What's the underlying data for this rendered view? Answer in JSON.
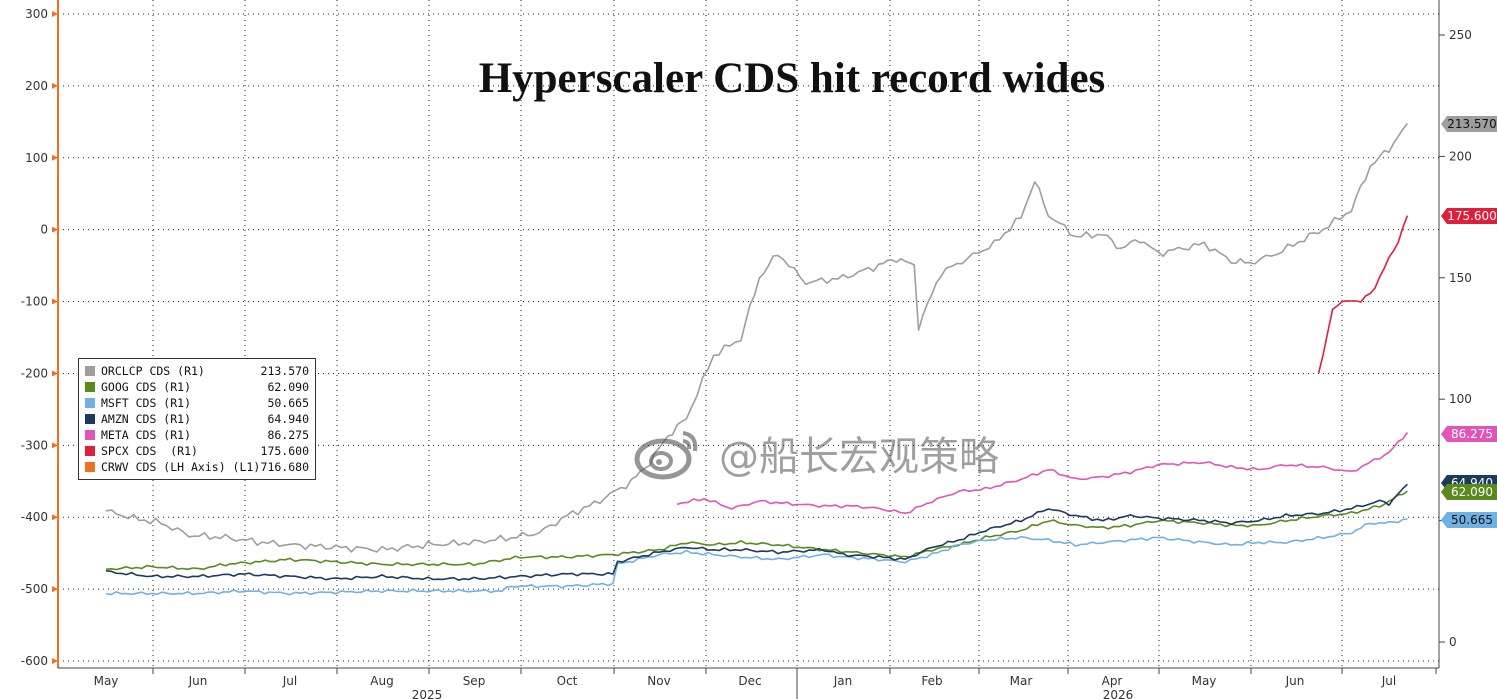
{
  "chart_data": {
    "type": "line",
    "title": "Hyperscaler CDS hit record wides",
    "left_axis": {
      "ticks": [
        300,
        200,
        100,
        0,
        -100,
        -200,
        -300,
        -400,
        -500,
        -600
      ],
      "range": [
        -600,
        300
      ]
    },
    "right_axis": {
      "ticks": [
        250,
        200,
        150,
        100,
        50,
        0
      ],
      "range": [
        0,
        250
      ]
    },
    "x_axis": {
      "months": [
        "May",
        "Jun",
        "Jul",
        "Aug",
        "Sep",
        "Oct",
        "Nov",
        "Dec",
        "Jan",
        "Feb",
        "Mar",
        "Apr",
        "May",
        "Jun",
        "Jul"
      ],
      "years": [
        "2025",
        "2026"
      ]
    },
    "series": [
      {
        "name": "ORCLCP CDS (R1)",
        "last": "213.570",
        "color": "#9e9e9e",
        "points": [
          [
            0,
            54
          ],
          [
            0.3,
            51
          ],
          [
            0.6,
            49
          ],
          [
            0.9,
            44
          ],
          [
            1.3,
            43
          ],
          [
            1.7,
            41
          ],
          [
            2.0,
            40
          ],
          [
            2.5,
            39
          ],
          [
            3.0,
            38
          ],
          [
            3.5,
            40
          ],
          [
            4.0,
            41
          ],
          [
            4.4,
            43
          ],
          [
            4.7,
            45
          ],
          [
            5.0,
            52
          ],
          [
            5.3,
            57
          ],
          [
            5.7,
            66
          ],
          [
            5.9,
            74
          ],
          [
            6.1,
            85
          ],
          [
            6.3,
            92
          ],
          [
            6.6,
            118
          ],
          [
            6.9,
            125
          ],
          [
            7.1,
            150
          ],
          [
            7.3,
            160
          ],
          [
            7.6,
            148
          ],
          [
            8.0,
            150
          ],
          [
            8.4,
            155
          ],
          [
            8.6,
            158
          ],
          [
            8.8,
            155
          ],
          [
            8.85,
            130
          ],
          [
            9.1,
            152
          ],
          [
            9.4,
            158
          ],
          [
            9.7,
            164
          ],
          [
            10.0,
            175
          ],
          [
            10.15,
            190
          ],
          [
            10.3,
            176
          ],
          [
            10.6,
            167
          ],
          [
            10.9,
            168
          ],
          [
            11.1,
            162
          ],
          [
            11.3,
            166
          ],
          [
            11.5,
            160
          ],
          [
            12.0,
            164
          ],
          [
            12.3,
            157
          ],
          [
            12.5,
            156
          ],
          [
            12.8,
            160
          ],
          [
            13.1,
            166
          ],
          [
            13.3,
            170
          ],
          [
            13.6,
            178
          ],
          [
            13.8,
            196
          ],
          [
            14.0,
            203
          ],
          [
            14.2,
            213.57
          ]
        ]
      },
      {
        "name": "GOOG CDS (R1)",
        "last": "62.090",
        "color": "#5a8a1e",
        "points": [
          [
            0,
            30
          ],
          [
            0.5,
            31
          ],
          [
            1.0,
            30
          ],
          [
            1.3,
            32
          ],
          [
            2.0,
            34
          ],
          [
            2.5,
            33
          ],
          [
            3.0,
            32
          ],
          [
            3.5,
            32
          ],
          [
            4.0,
            32
          ],
          [
            4.5,
            35
          ],
          [
            5.0,
            35
          ],
          [
            5.5,
            36
          ],
          [
            6.0,
            38
          ],
          [
            6.3,
            41
          ],
          [
            6.6,
            40
          ],
          [
            6.9,
            41
          ],
          [
            7.3,
            40
          ],
          [
            7.8,
            38
          ],
          [
            8.1,
            37
          ],
          [
            8.4,
            36
          ],
          [
            8.7,
            35
          ],
          [
            9.0,
            38
          ],
          [
            9.3,
            40
          ],
          [
            9.6,
            43
          ],
          [
            10.0,
            46
          ],
          [
            10.3,
            50
          ],
          [
            10.6,
            48
          ],
          [
            10.9,
            47
          ],
          [
            11.2,
            48
          ],
          [
            11.5,
            50
          ],
          [
            12.0,
            49
          ],
          [
            12.3,
            48
          ],
          [
            12.6,
            48
          ],
          [
            12.9,
            50
          ],
          [
            13.3,
            52
          ],
          [
            13.6,
            53
          ],
          [
            13.9,
            56
          ],
          [
            14.0,
            58
          ],
          [
            14.2,
            62.09
          ]
        ]
      },
      {
        "name": "MSFT CDS (R1)",
        "last": "50.665",
        "color": "#6eb2e4",
        "points": [
          [
            0,
            20
          ],
          [
            0.5,
            20
          ],
          [
            1.0,
            20
          ],
          [
            1.5,
            21
          ],
          [
            2.0,
            20
          ],
          [
            3.0,
            21
          ],
          [
            4.0,
            21
          ],
          [
            4.3,
            21
          ],
          [
            4.4,
            23
          ],
          [
            5.0,
            23
          ],
          [
            5.5,
            24
          ],
          [
            5.55,
            32
          ],
          [
            6.0,
            36
          ],
          [
            6.3,
            37
          ],
          [
            6.6,
            36
          ],
          [
            6.9,
            35
          ],
          [
            7.3,
            34
          ],
          [
            7.8,
            36
          ],
          [
            8.0,
            35
          ],
          [
            8.4,
            34
          ],
          [
            8.7,
            33
          ],
          [
            9.0,
            36
          ],
          [
            9.3,
            40
          ],
          [
            9.6,
            42
          ],
          [
            10.0,
            43
          ],
          [
            10.3,
            42
          ],
          [
            10.6,
            40
          ],
          [
            10.9,
            41
          ],
          [
            11.2,
            42
          ],
          [
            11.5,
            43
          ],
          [
            12.0,
            41
          ],
          [
            12.3,
            40
          ],
          [
            12.6,
            41
          ],
          [
            12.9,
            41
          ],
          [
            13.3,
            43
          ],
          [
            13.6,
            45
          ],
          [
            13.8,
            49
          ],
          [
            14.0,
            49
          ],
          [
            14.2,
            50.665
          ]
        ]
      },
      {
        "name": "AMZN CDS (R1)",
        "last": "64.940",
        "color": "#1b3a5c",
        "points": [
          [
            0,
            29
          ],
          [
            0.5,
            27
          ],
          [
            1.0,
            27
          ],
          [
            1.5,
            28
          ],
          [
            2.0,
            27
          ],
          [
            2.5,
            26
          ],
          [
            3.0,
            27
          ],
          [
            3.5,
            26
          ],
          [
            4.0,
            26
          ],
          [
            4.5,
            27
          ],
          [
            5.0,
            28
          ],
          [
            5.5,
            28
          ],
          [
            5.55,
            33
          ],
          [
            6.0,
            37
          ],
          [
            6.3,
            39
          ],
          [
            6.6,
            38
          ],
          [
            6.9,
            38
          ],
          [
            7.3,
            37
          ],
          [
            7.8,
            38
          ],
          [
            8.0,
            36
          ],
          [
            8.4,
            35
          ],
          [
            8.7,
            34
          ],
          [
            9.0,
            39
          ],
          [
            9.3,
            42
          ],
          [
            9.6,
            46
          ],
          [
            10.0,
            50
          ],
          [
            10.3,
            55
          ],
          [
            10.6,
            52
          ],
          [
            10.9,
            50
          ],
          [
            11.2,
            52
          ],
          [
            11.5,
            51
          ],
          [
            12.0,
            50
          ],
          [
            12.3,
            49
          ],
          [
            12.6,
            50
          ],
          [
            12.9,
            52
          ],
          [
            13.3,
            53
          ],
          [
            13.6,
            55
          ],
          [
            13.9,
            58
          ],
          [
            14.0,
            57
          ],
          [
            14.2,
            64.94
          ]
        ]
      },
      {
        "name": "META CDS (R1)",
        "last": "86.275",
        "color": "#e055b8",
        "points": [
          [
            6.2,
            57
          ],
          [
            6.5,
            59
          ],
          [
            6.8,
            55
          ],
          [
            7.1,
            58
          ],
          [
            7.4,
            57
          ],
          [
            7.8,
            56
          ],
          [
            8.1,
            56
          ],
          [
            8.4,
            55
          ],
          [
            8.7,
            53
          ],
          [
            9.0,
            58
          ],
          [
            9.3,
            62
          ],
          [
            9.6,
            63
          ],
          [
            10.0,
            67
          ],
          [
            10.3,
            71
          ],
          [
            10.6,
            67
          ],
          [
            10.9,
            68
          ],
          [
            11.2,
            70
          ],
          [
            11.5,
            73
          ],
          [
            12.0,
            74
          ],
          [
            12.3,
            72
          ],
          [
            12.6,
            71
          ],
          [
            12.9,
            73
          ],
          [
            13.3,
            72
          ],
          [
            13.6,
            70
          ],
          [
            13.9,
            76
          ],
          [
            14.0,
            78
          ],
          [
            14.2,
            86.275
          ]
        ]
      },
      {
        "name": "SPCX CDS  (R1)",
        "last": "175.600",
        "color": "#e01e3c",
        "points": [
          [
            13.25,
            110
          ],
          [
            13.4,
            137
          ],
          [
            13.55,
            141
          ],
          [
            13.7,
            140
          ],
          [
            13.85,
            146
          ],
          [
            14.0,
            158
          ],
          [
            14.1,
            165
          ],
          [
            14.2,
            175.6
          ]
        ]
      },
      {
        "name": "CRWV CDS (LH Axis) (L1)",
        "last": "716.680",
        "color": "#f07020",
        "points": []
      }
    ],
    "right_labels": [
      {
        "text": "213.570",
        "bg": "#9e9e9e"
      },
      {
        "text": "175.600",
        "bg": "#e01e3c"
      },
      {
        "text": "86.275",
        "bg": "#e055b8"
      },
      {
        "text": "64.940",
        "bg": "#1b3a5c"
      },
      {
        "text": "62.090",
        "bg": "#5a8a1e"
      },
      {
        "text": "50.665",
        "bg": "#6eb2e4"
      }
    ]
  },
  "watermark": {
    "text": "@船长宏观策略",
    "icon": "weibo-icon"
  }
}
